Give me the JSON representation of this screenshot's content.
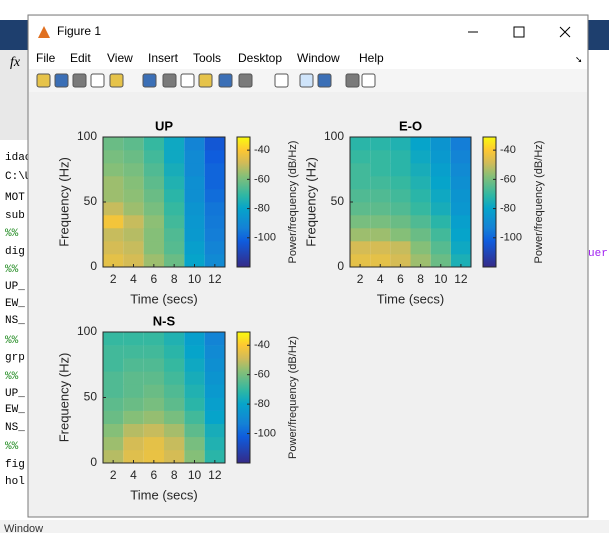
{
  "window": {
    "title": "Figure 1",
    "menu": [
      "File",
      "Edit",
      "View",
      "Insert",
      "Tools",
      "Desktop",
      "Window",
      "Help"
    ]
  },
  "background": {
    "lines": [
      "idac",
      "C:\\U",
      "MOT",
      "sub",
      "%%",
      "dig",
      "%%",
      "UP_",
      "EW_",
      "NS_",
      "%%",
      "grp",
      "%%",
      "UP_",
      "EW_",
      "NS_",
      "%%",
      "fig",
      "hol"
    ],
    "side_text": "uer",
    "status": "Window"
  },
  "chart_data": [
    {
      "type": "heatmap",
      "title": "UP",
      "xlabel": "Time (secs)",
      "ylabel": "Frequency (Hz)",
      "x": [
        2,
        4,
        6,
        8,
        10,
        12
      ],
      "y": [
        5,
        15,
        25,
        35,
        45,
        55,
        65,
        75,
        85,
        95
      ],
      "xlim": [
        1,
        13
      ],
      "ylim": [
        0,
        100
      ],
      "xticks": [
        2,
        4,
        6,
        8,
        10,
        12
      ],
      "yticks": [
        0,
        50,
        100
      ],
      "clim": [
        -120,
        -31
      ],
      "cticks": [
        -40,
        -60,
        -80,
        -100
      ],
      "clabel": "Power/frequency (dB/Hz)",
      "z": [
        [
          -45,
          -48,
          -55,
          -62,
          -80,
          -90
        ],
        [
          -48,
          -50,
          -58,
          -65,
          -82,
          -92
        ],
        [
          -50,
          -52,
          -58,
          -66,
          -84,
          -94
        ],
        [
          -42,
          -50,
          -57,
          -68,
          -85,
          -95
        ],
        [
          -50,
          -55,
          -60,
          -70,
          -86,
          -96
        ],
        [
          -55,
          -57,
          -62,
          -72,
          -88,
          -98
        ],
        [
          -55,
          -58,
          -64,
          -74,
          -88,
          -100
        ],
        [
          -58,
          -60,
          -66,
          -76,
          -90,
          -100
        ],
        [
          -60,
          -62,
          -68,
          -78,
          -90,
          -102
        ],
        [
          -62,
          -64,
          -70,
          -78,
          -92,
          -104
        ]
      ]
    },
    {
      "type": "heatmap",
      "title": "E-O",
      "xlabel": "Time (secs)",
      "ylabel": "Frequency (Hz)",
      "x": [
        2,
        4,
        6,
        8,
        10,
        12
      ],
      "y": [
        5,
        15,
        25,
        35,
        45,
        55,
        65,
        75,
        85,
        95
      ],
      "xlim": [
        1,
        13
      ],
      "ylim": [
        0,
        100
      ],
      "xticks": [
        2,
        4,
        6,
        8,
        10,
        12
      ],
      "yticks": [
        0,
        50,
        100
      ],
      "clim": [
        -120,
        -31
      ],
      "cticks": [
        -40,
        -60,
        -80,
        -100
      ],
      "clabel": "Power/frequency (dB/Hz)",
      "z": [
        [
          -45,
          -45,
          -48,
          -55,
          -62,
          -75
        ],
        [
          -48,
          -48,
          -50,
          -58,
          -65,
          -78
        ],
        [
          -55,
          -55,
          -58,
          -62,
          -68,
          -80
        ],
        [
          -60,
          -60,
          -62,
          -66,
          -72,
          -82
        ],
        [
          -64,
          -64,
          -66,
          -70,
          -76,
          -85
        ],
        [
          -66,
          -66,
          -68,
          -72,
          -78,
          -86
        ],
        [
          -68,
          -68,
          -70,
          -74,
          -80,
          -88
        ],
        [
          -68,
          -70,
          -72,
          -76,
          -82,
          -90
        ],
        [
          -70,
          -70,
          -72,
          -78,
          -84,
          -92
        ],
        [
          -72,
          -72,
          -74,
          -80,
          -86,
          -94
        ]
      ]
    },
    {
      "type": "heatmap",
      "title": "N-S",
      "xlabel": "Time (secs)",
      "ylabel": "Frequency (Hz)",
      "x": [
        2,
        4,
        6,
        8,
        10,
        12
      ],
      "y": [
        5,
        15,
        25,
        35,
        45,
        55,
        65,
        75,
        85,
        95
      ],
      "xlim": [
        1,
        13
      ],
      "ylim": [
        0,
        100
      ],
      "xticks": [
        2,
        4,
        6,
        8,
        10,
        12
      ],
      "yticks": [
        0,
        50,
        100
      ],
      "clim": [
        -120,
        -31
      ],
      "cticks": [
        -40,
        -60,
        -80,
        -100
      ],
      "clabel": "Power/frequency (dB/Hz)",
      "z": [
        [
          -52,
          -46,
          -44,
          -48,
          -58,
          -72
        ],
        [
          -55,
          -48,
          -45,
          -50,
          -60,
          -74
        ],
        [
          -58,
          -52,
          -50,
          -54,
          -64,
          -76
        ],
        [
          -62,
          -58,
          -56,
          -60,
          -68,
          -80
        ],
        [
          -64,
          -62,
          -60,
          -64,
          -72,
          -82
        ],
        [
          -66,
          -64,
          -62,
          -66,
          -74,
          -84
        ],
        [
          -66,
          -64,
          -64,
          -68,
          -76,
          -86
        ],
        [
          -68,
          -66,
          -66,
          -70,
          -78,
          -88
        ],
        [
          -68,
          -68,
          -68,
          -72,
          -80,
          -90
        ],
        [
          -70,
          -70,
          -70,
          -74,
          -82,
          -92
        ]
      ]
    }
  ]
}
